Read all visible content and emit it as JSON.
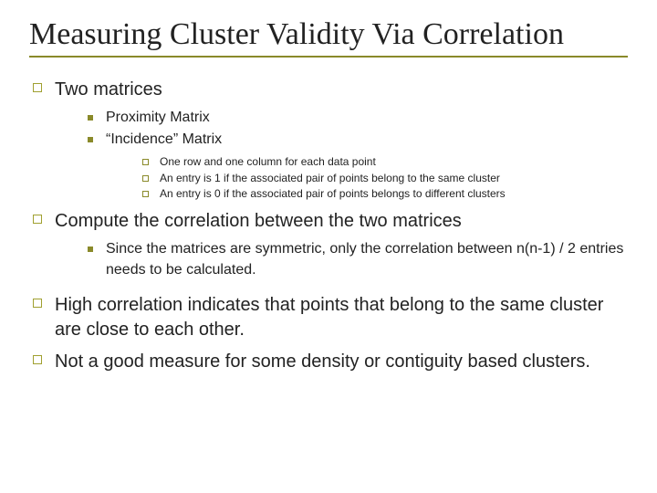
{
  "title": "Measuring Cluster Validity Via Correlation",
  "colors": {
    "accent": "#8a8a2a",
    "text": "#222222",
    "background": "#ffffff"
  },
  "fontsizes": {
    "title": 34,
    "l1": 20,
    "l2": 16,
    "l3": 12
  },
  "b1": {
    "text": "Two matrices",
    "sub": [
      {
        "text": "Proximity Matrix"
      },
      {
        "text": "“Incidence” Matrix",
        "sub": [
          {
            "text": "One row and one column for each data point"
          },
          {
            "text": "An entry is 1 if the associated pair of points belong to the same cluster"
          },
          {
            "text": "An entry is 0 if the associated pair of points belongs to different clusters"
          }
        ]
      }
    ]
  },
  "b2": {
    "text": "Compute the correlation between the two matrices",
    "sub": [
      {
        "text": "Since the matrices are symmetric, only the correlation between n(n-1) / 2 entries needs to be calculated."
      }
    ]
  },
  "b3": {
    "text": "High correlation indicates that points that belong to the same cluster are close to each other."
  },
  "b4": {
    "text": "Not a good measure for some density or contiguity based clusters."
  }
}
